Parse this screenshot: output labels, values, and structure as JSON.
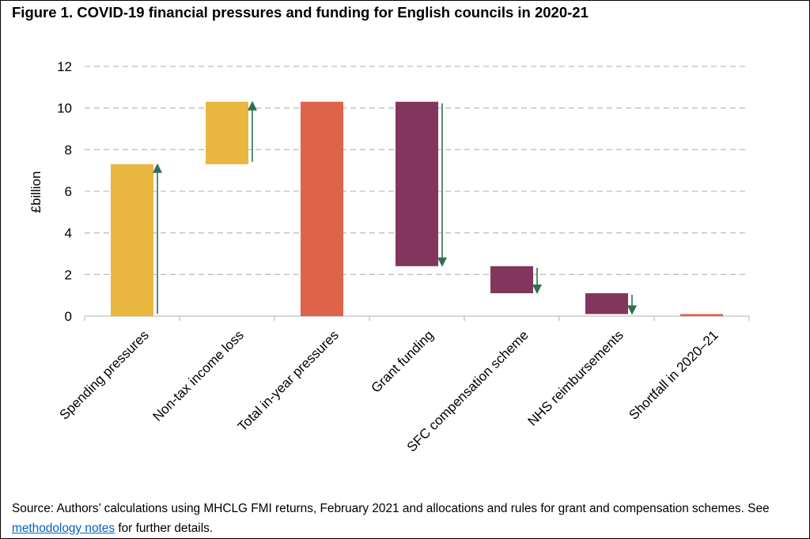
{
  "title": "Figure 1. COVID-19 financial pressures and funding for English councils in 2020-21",
  "source": {
    "text_before": "Source: Authors’ calculations using MHCLG FMI returns, February 2021 and allocations and rules for grant and compensation schemes. See ",
    "link_text": "methodology notes",
    "text_after": " for further details."
  },
  "colors": {
    "pressure": "#e9b640",
    "total": "#dd644a",
    "funding": "#82365e",
    "arrow": "#2e7055",
    "grid": "#bfbfbf"
  },
  "chart_data": {
    "type": "bar",
    "subtype": "waterfall",
    "ylabel": "£billion",
    "ylim": [
      0,
      12
    ],
    "yticks": [
      0,
      2,
      4,
      6,
      8,
      10,
      12
    ],
    "grid": true,
    "categories": [
      "Spending pressures",
      "Non-tax income loss",
      "Total in-year pressures",
      "Grant funding",
      "SFC compensation scheme",
      "NHS reimbursements",
      "Shortfall in 2020–21"
    ],
    "bars": [
      {
        "base": 0,
        "top": 7.3,
        "kind": "pressure",
        "arrow": "up"
      },
      {
        "base": 7.3,
        "top": 10.3,
        "kind": "pressure",
        "arrow": "up"
      },
      {
        "base": 0,
        "top": 10.3,
        "kind": "total",
        "arrow": "none"
      },
      {
        "base": 2.4,
        "top": 10.3,
        "kind": "funding",
        "arrow": "down"
      },
      {
        "base": 1.1,
        "top": 2.4,
        "kind": "funding",
        "arrow": "down"
      },
      {
        "base": 0.1,
        "top": 1.1,
        "kind": "funding",
        "arrow": "down"
      },
      {
        "base": 0,
        "top": 0.1,
        "kind": "total",
        "arrow": "none"
      }
    ]
  }
}
